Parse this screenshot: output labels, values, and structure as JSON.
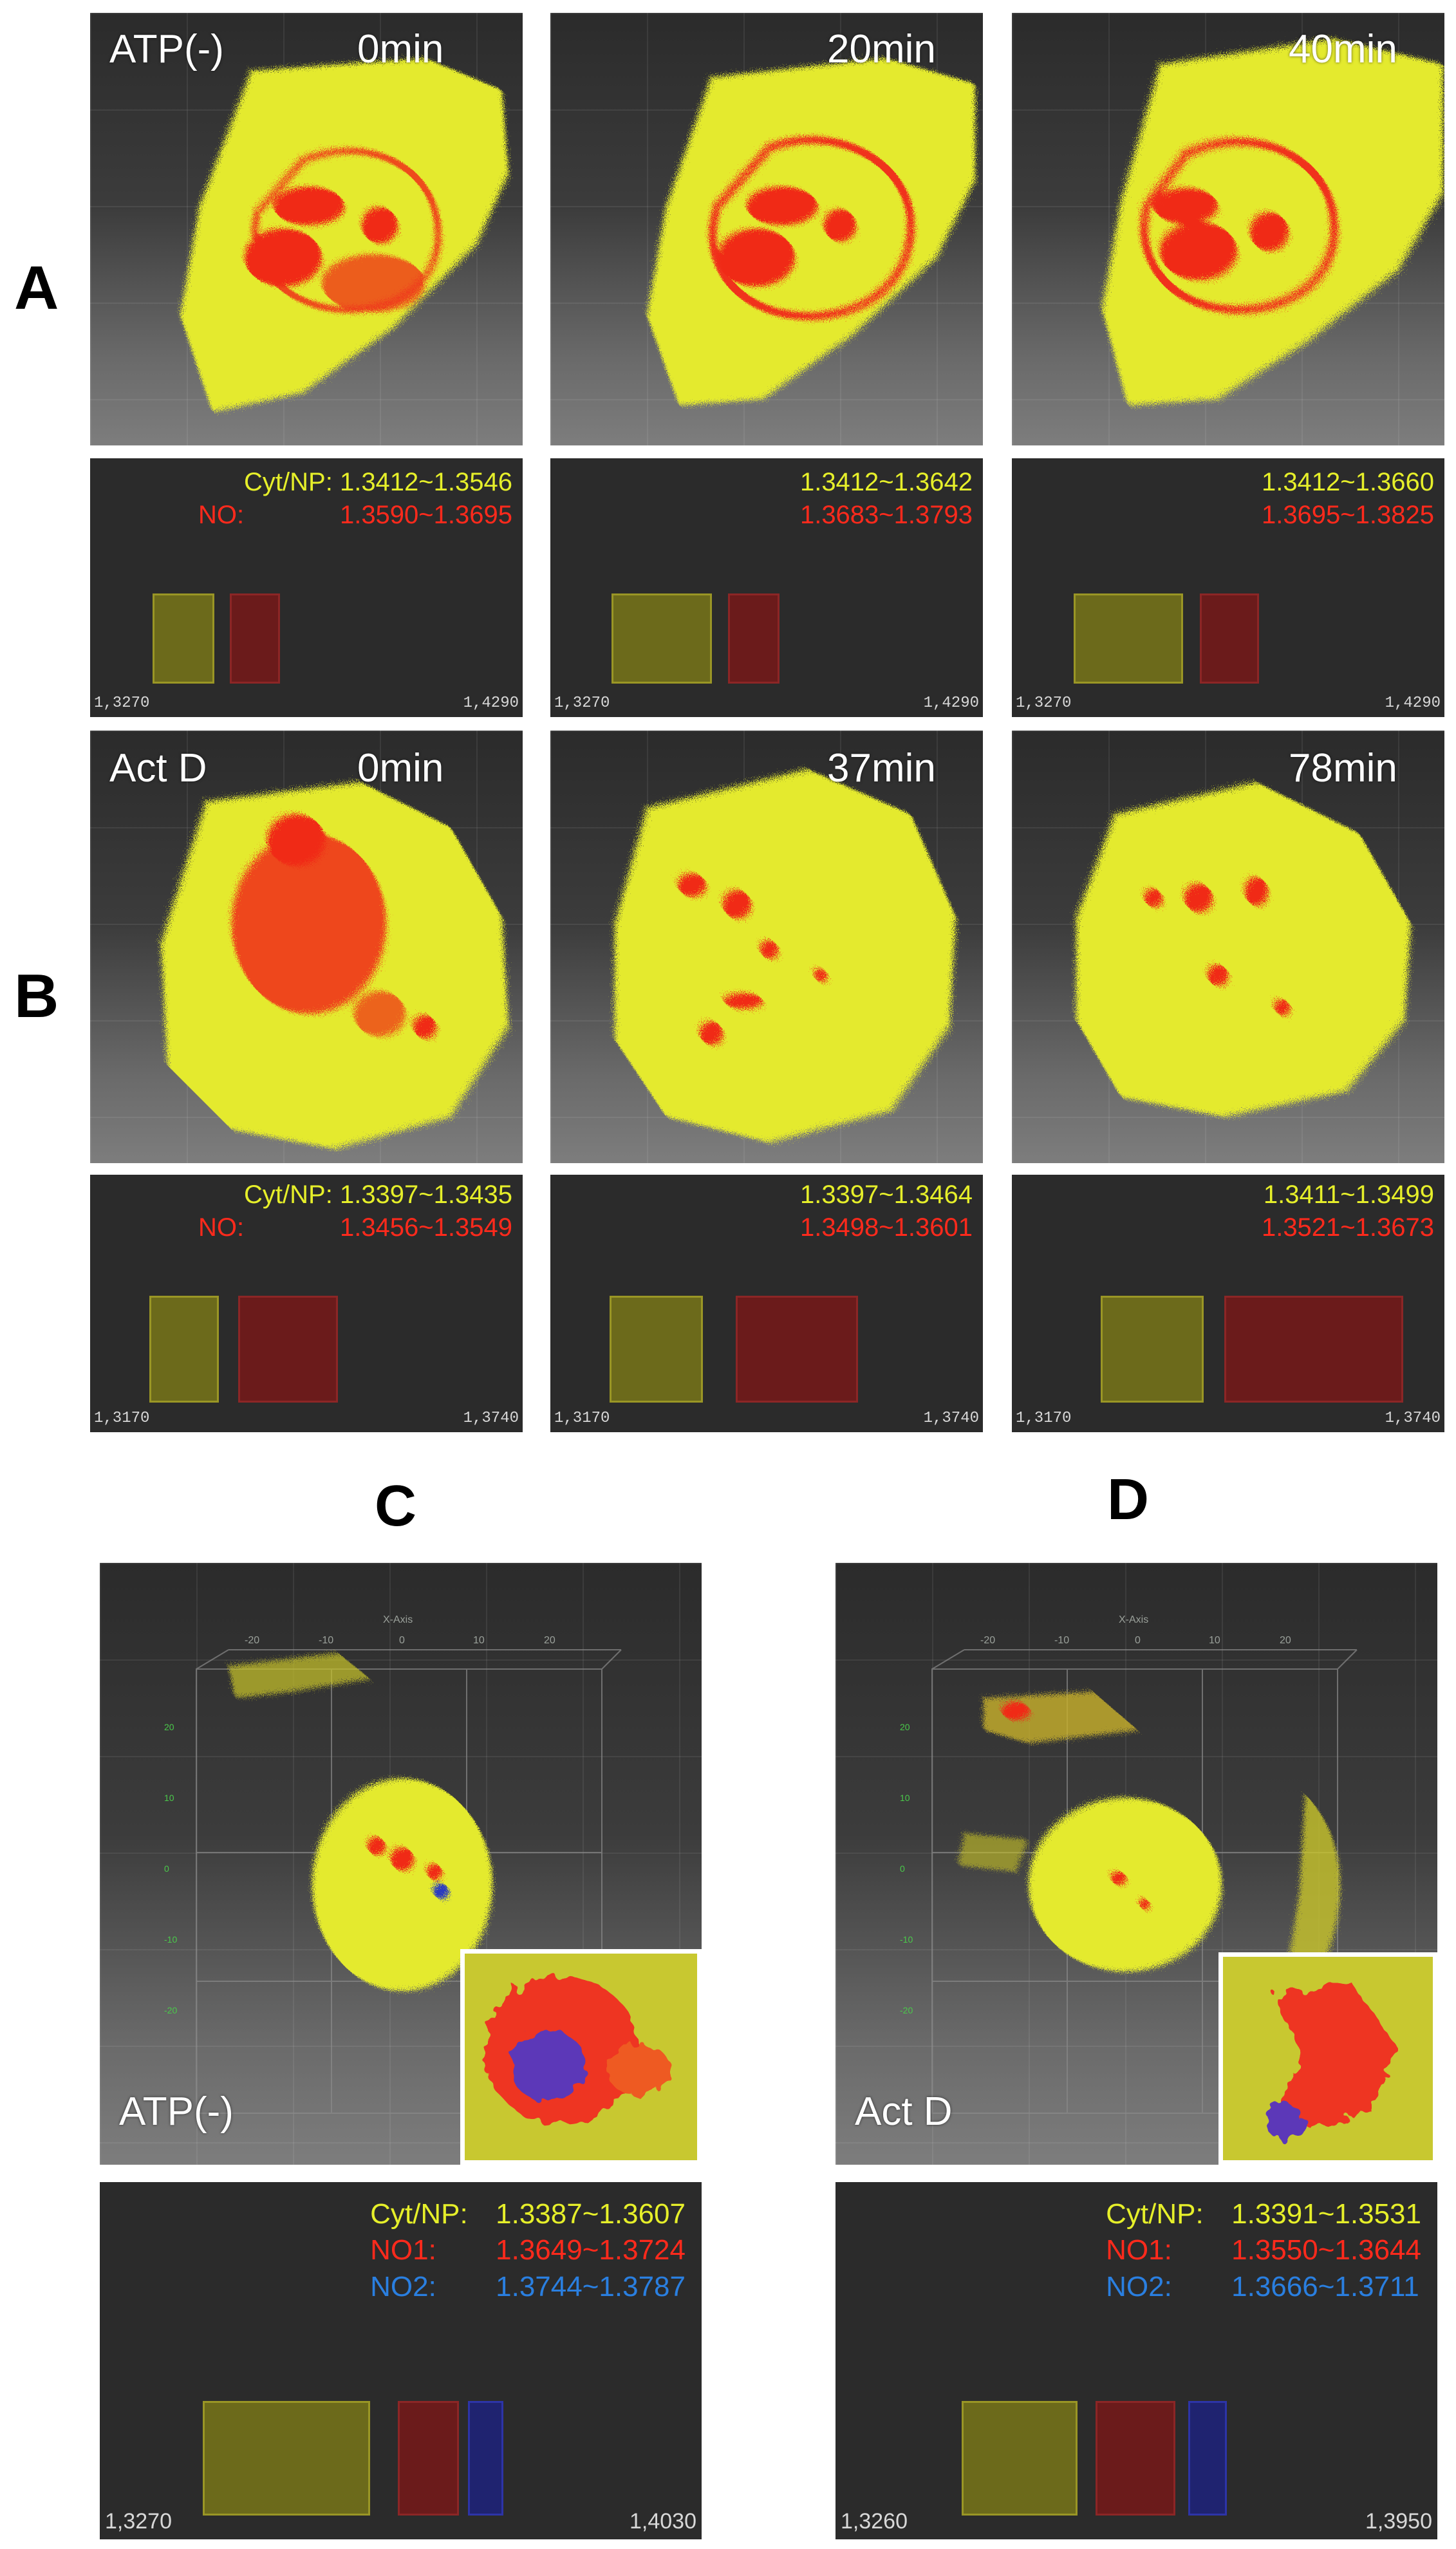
{
  "labels": {
    "A": "A",
    "B": "B",
    "C": "C",
    "D": "D"
  },
  "rowA": {
    "panels": [
      {
        "condition": "ATP(-)",
        "time": "0min",
        "cyt_prefix": "Cyt/NP:",
        "cyt_range": "1.3412~1.3546",
        "no_prefix": "NO:",
        "no_range": "1.3590~1.3695",
        "scale_min": "1,3270",
        "scale_max": "1,4290"
      },
      {
        "condition": "",
        "time": "20min",
        "cyt_prefix": "",
        "cyt_range": "1.3412~1.3642",
        "no_prefix": "",
        "no_range": "1.3683~1.3793",
        "scale_min": "1,3270",
        "scale_max": "1,4290"
      },
      {
        "condition": "",
        "time": "40min",
        "cyt_prefix": "",
        "cyt_range": "1.3412~1.3660",
        "no_prefix": "",
        "no_range": "1.3695~1.3825",
        "scale_min": "1,3270",
        "scale_max": "1,4290"
      }
    ]
  },
  "rowB": {
    "panels": [
      {
        "condition": "Act D",
        "time": "0min",
        "cyt_prefix": "Cyt/NP:",
        "cyt_range": "1.3397~1.3435",
        "no_prefix": "NO:",
        "no_range": "1.3456~1.3549",
        "scale_min": "1,3170",
        "scale_max": "1,3740"
      },
      {
        "condition": "",
        "time": "37min",
        "cyt_prefix": "",
        "cyt_range": "1.3397~1.3464",
        "no_prefix": "",
        "no_range": "1.3498~1.3601",
        "scale_min": "1,3170",
        "scale_max": "1,3740"
      },
      {
        "condition": "",
        "time": "78min",
        "cyt_prefix": "",
        "cyt_range": "1.3411~1.3499",
        "no_prefix": "",
        "no_range": "1.3521~1.3673",
        "scale_min": "1,3170",
        "scale_max": "1,3740"
      }
    ]
  },
  "panelC": {
    "condition": "ATP(-)",
    "axis_title": "X-Axis",
    "x_ticks": [
      "-20",
      "-10",
      "0",
      "10",
      "20"
    ],
    "cyt_prefix": "Cyt/NP:",
    "cyt_range": "1.3387~1.3607",
    "no1_prefix": "NO1:",
    "no1_range": "1.3649~1.3724",
    "no2_prefix": "NO2:",
    "no2_range": "1.3744~1.3787",
    "scale_min": "1,3270",
    "scale_max": "1,4030"
  },
  "panelD": {
    "condition": "Act D",
    "axis_title": "X-Axis",
    "x_ticks": [
      "-20",
      "-10",
      "0",
      "10",
      "20"
    ],
    "cyt_prefix": "Cyt/NP:",
    "cyt_range": "1.3391~1.3531",
    "no1_prefix": "NO1:",
    "no1_range": "1.3550~1.3644",
    "no2_prefix": "NO2:",
    "no2_range": "1.3666~1.3711",
    "scale_min": "1,3260",
    "scale_max": "1,3950"
  },
  "colors": {
    "cytoplasm": "#e6ef2a",
    "nucleolus": "#ff2a1c",
    "nucleolus2": "#2a7fe0",
    "background": "#2b2b2b"
  }
}
